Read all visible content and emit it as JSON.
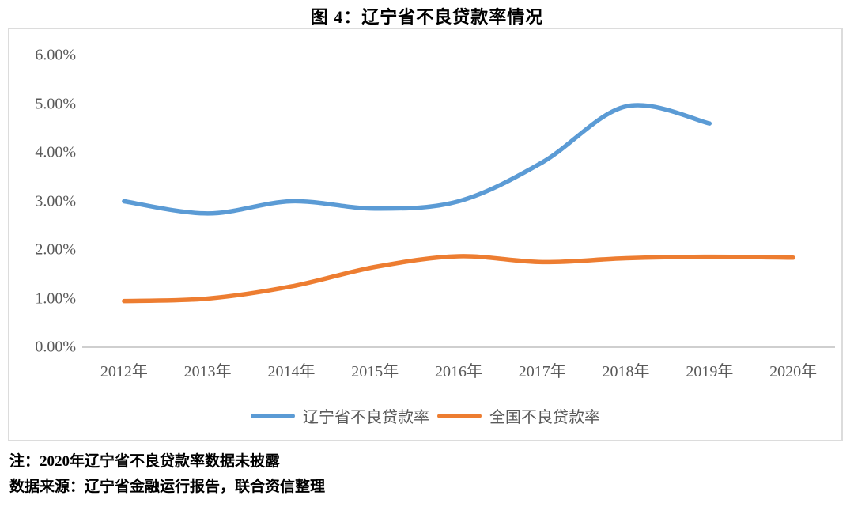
{
  "page": {
    "title": "图 4：辽宁省不良贷款率情况",
    "note": "注：2020年辽宁省不良贷款率数据未披露",
    "source": "数据来源：辽宁省金融运行报告，联合资信整理"
  },
  "chart_data": {
    "type": "line",
    "title": "图 4：辽宁省不良贷款率情况",
    "categories": [
      "2012年",
      "2013年",
      "2014年",
      "2015年",
      "2016年",
      "2017年",
      "2018年",
      "2019年",
      "2020年"
    ],
    "series": [
      {
        "name": "辽宁省不良贷款率",
        "color": "#5B9BD5",
        "values": [
          3.0,
          2.75,
          3.0,
          2.85,
          3.0,
          3.8,
          4.95,
          4.6,
          null
        ]
      },
      {
        "name": "全国不良贷款率",
        "color": "#ED7D31",
        "values": [
          0.95,
          1.0,
          1.25,
          1.65,
          1.87,
          1.75,
          1.83,
          1.86,
          1.84
        ]
      }
    ],
    "ylabel": "",
    "xlabel": "",
    "ylim": [
      0,
      6
    ],
    "ytick_step": 1,
    "ytick_labels": [
      "0.00%",
      "1.00%",
      "2.00%",
      "3.00%",
      "4.00%",
      "5.00%",
      "6.00%"
    ],
    "grid": false,
    "smooth": true,
    "legend_position": "bottom",
    "axis_text_color": "#595959",
    "axis_line_color": "#BFBFBF"
  }
}
